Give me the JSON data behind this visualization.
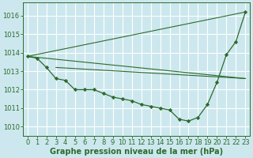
{
  "background_color": "#cce8ee",
  "grid_color": "#ffffff",
  "line_color": "#2d6a2d",
  "marker_color": "#2d6a2d",
  "xlabel": "Graphe pression niveau de la mer (hPa)",
  "xlabel_fontsize": 7,
  "tick_fontsize": 6,
  "ylim": [
    1009.5,
    1016.7
  ],
  "xlim": [
    -0.5,
    23.5
  ],
  "yticks": [
    1010,
    1011,
    1012,
    1013,
    1014,
    1015,
    1016
  ],
  "xticks": [
    0,
    1,
    2,
    3,
    4,
    5,
    6,
    7,
    8,
    9,
    10,
    11,
    12,
    13,
    14,
    15,
    16,
    17,
    18,
    19,
    20,
    21,
    22,
    23
  ],
  "main_x": [
    0,
    1,
    2,
    3,
    4,
    5,
    6,
    7,
    8,
    9,
    10,
    11,
    12,
    13,
    14,
    15,
    16,
    17,
    18,
    19,
    20,
    21,
    22,
    23
  ],
  "main_y": [
    1013.8,
    1013.7,
    1013.2,
    1012.6,
    1012.5,
    1012.0,
    1012.0,
    1012.0,
    1011.8,
    1011.6,
    1011.5,
    1011.4,
    1011.2,
    1011.1,
    1011.0,
    1010.9,
    1010.4,
    1010.3,
    1010.5,
    1011.2,
    1012.4,
    1013.9,
    1014.6,
    1016.2
  ],
  "trend_lines": [
    {
      "x": [
        0,
        23
      ],
      "y": [
        1013.8,
        1016.2
      ]
    },
    {
      "x": [
        0,
        23
      ],
      "y": [
        1013.8,
        1012.6
      ]
    },
    {
      "x": [
        3,
        23
      ],
      "y": [
        1013.2,
        1012.6
      ]
    }
  ]
}
